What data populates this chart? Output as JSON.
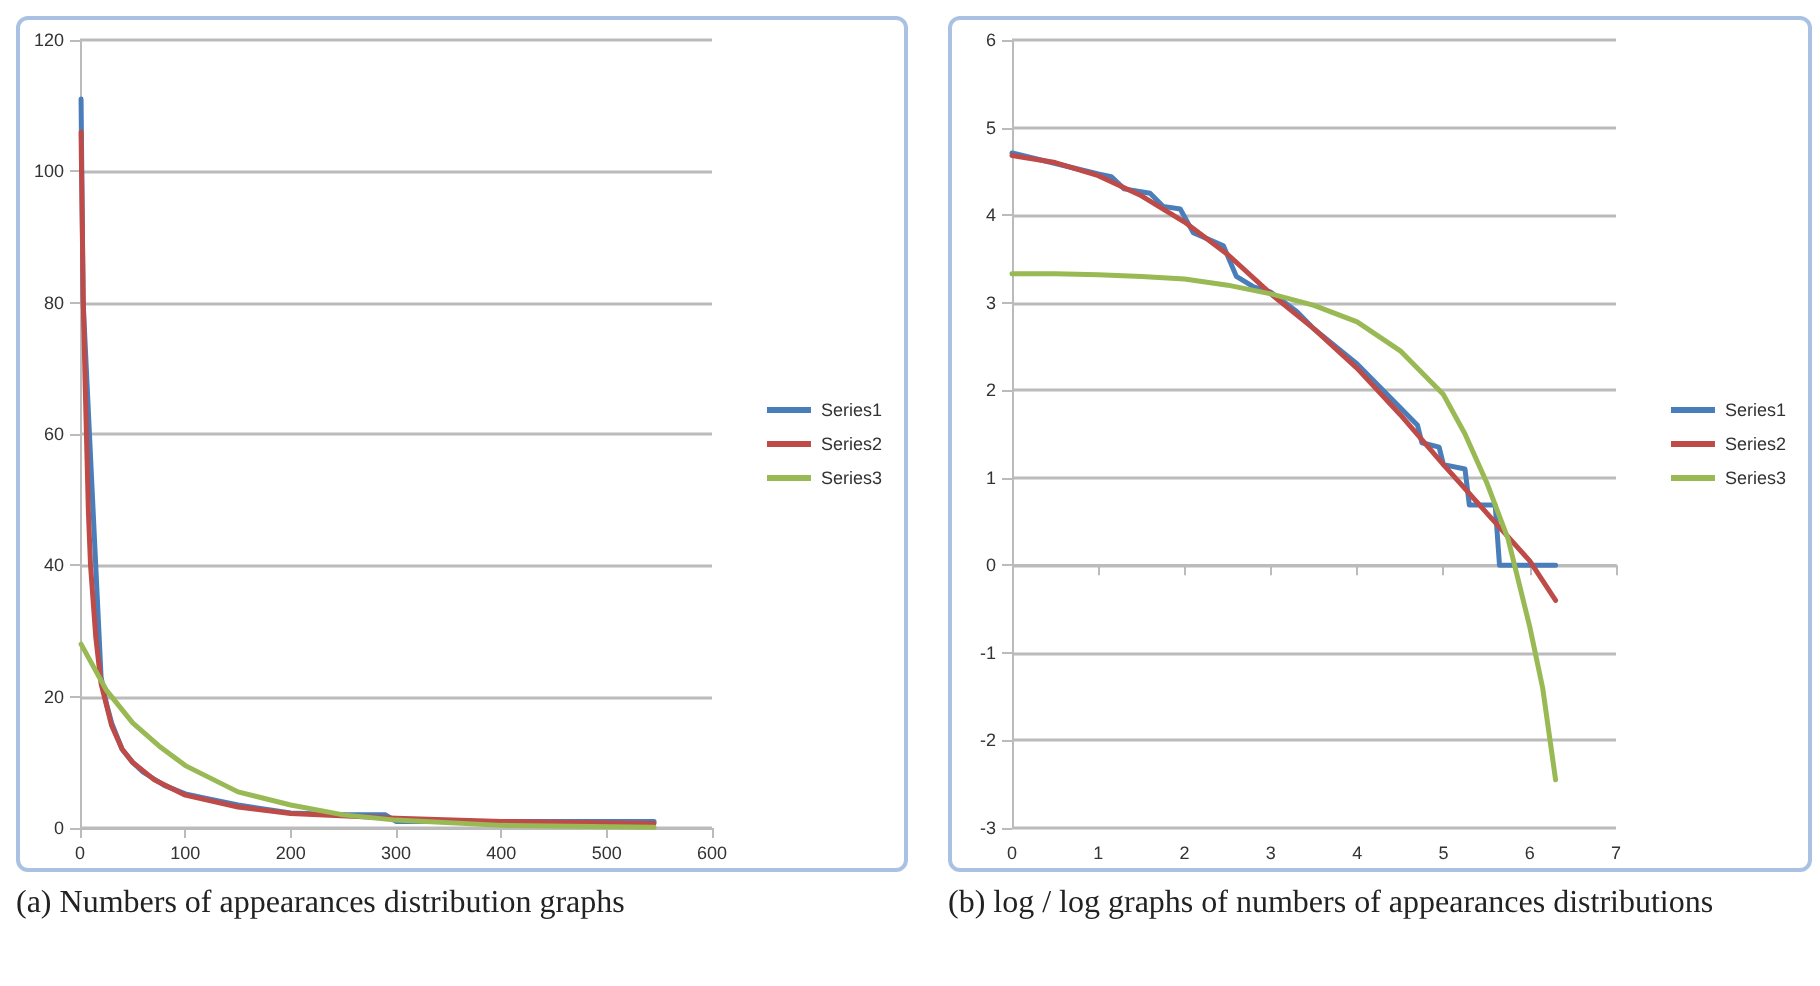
{
  "chart_data": [
    {
      "type": "line",
      "annotations": [
        "(a) Numbers of appearances distribution graphs"
      ],
      "xlim": [
        0,
        600
      ],
      "xticks": [
        0,
        100,
        200,
        300,
        400,
        500,
        600
      ],
      "ylim": [
        0,
        120
      ],
      "yticks": [
        0,
        20,
        40,
        60,
        80,
        100,
        120
      ],
      "grid": "y",
      "legend": "right",
      "marker": "none",
      "line_style": "solid",
      "series": [
        {
          "name": "Series1",
          "color": "#4a7ebb",
          "x": [
            1,
            3,
            20,
            25,
            30,
            40,
            50,
            60,
            70,
            80,
            100,
            120,
            150,
            200,
            250,
            290,
            300,
            545
          ],
          "values": [
            111,
            80,
            23,
            19,
            16,
            12,
            10,
            8.5,
            7.5,
            6.5,
            5.2,
            4.5,
            3.5,
            2.3,
            2,
            2,
            1,
            1
          ]
        },
        {
          "name": "Series2",
          "color": "#be4b48",
          "x": [
            1,
            3,
            5,
            8,
            10,
            15,
            20,
            30,
            40,
            50,
            70,
            100,
            150,
            200,
            300,
            400,
            545
          ],
          "values": [
            106,
            81,
            67,
            48,
            40,
            29,
            22,
            15.6,
            12,
            10,
            7.4,
            5,
            3.2,
            2.2,
            1.5,
            1,
            0.7
          ]
        },
        {
          "name": "Series3",
          "color": "#98b954",
          "x": [
            1,
            25,
            50,
            75,
            100,
            150,
            200,
            250,
            300,
            400,
            545
          ],
          "values": [
            28,
            21,
            16,
            12.5,
            9.5,
            5.5,
            3.5,
            2,
            1.2,
            0.4,
            0.1
          ]
        }
      ]
    },
    {
      "type": "line",
      "annotations": [
        "(b) log / log graphs of numbers of appearances distributions"
      ],
      "xlim": [
        0,
        7
      ],
      "xticks": [
        0,
        1,
        2,
        3,
        4,
        5,
        6,
        7
      ],
      "ylim": [
        -3,
        6
      ],
      "yticks": [
        -3,
        -2,
        -1,
        0,
        1,
        2,
        3,
        4,
        5,
        6
      ],
      "grid": "y",
      "legend": "right",
      "marker": "none",
      "line_style": "solid",
      "series": [
        {
          "name": "Series1",
          "color": "#4a7ebb",
          "x": [
            0,
            1,
            1.15,
            1.3,
            1.6,
            1.75,
            1.95,
            2.1,
            2.45,
            2.6,
            2.8,
            3,
            3.3,
            3.5,
            4,
            4.5,
            4.7,
            4.75,
            4.95,
            5,
            5.25,
            5.3,
            5.6,
            5.65,
            6.3
          ],
          "values": [
            4.71,
            4.47,
            4.44,
            4.3,
            4.25,
            4.1,
            4.07,
            3.8,
            3.65,
            3.3,
            3.18,
            3.12,
            2.9,
            2.7,
            2.3,
            1.8,
            1.6,
            1.4,
            1.35,
            1.15,
            1.1,
            0.69,
            0.69,
            0,
            0
          ]
        },
        {
          "name": "Series2",
          "color": "#be4b48",
          "x": [
            0,
            0.5,
            1,
            1.5,
            2,
            2.5,
            3,
            3.5,
            4,
            4.5,
            5,
            5.5,
            6,
            6.3
          ],
          "values": [
            4.68,
            4.6,
            4.45,
            4.22,
            3.92,
            3.55,
            3.1,
            2.7,
            2.25,
            1.72,
            1.15,
            0.6,
            0.05,
            -0.4
          ]
        },
        {
          "name": "Series3",
          "color": "#98b954",
          "x": [
            0,
            0.5,
            1,
            1.5,
            2,
            2.5,
            3,
            3.5,
            4,
            4.5,
            5,
            5.25,
            5.5,
            5.75,
            6,
            6.15,
            6.3
          ],
          "values": [
            3.33,
            3.33,
            3.32,
            3.3,
            3.27,
            3.2,
            3.1,
            2.97,
            2.78,
            2.45,
            1.95,
            1.5,
            0.95,
            0.3,
            -0.7,
            -1.4,
            -2.45
          ]
        }
      ]
    }
  ]
}
